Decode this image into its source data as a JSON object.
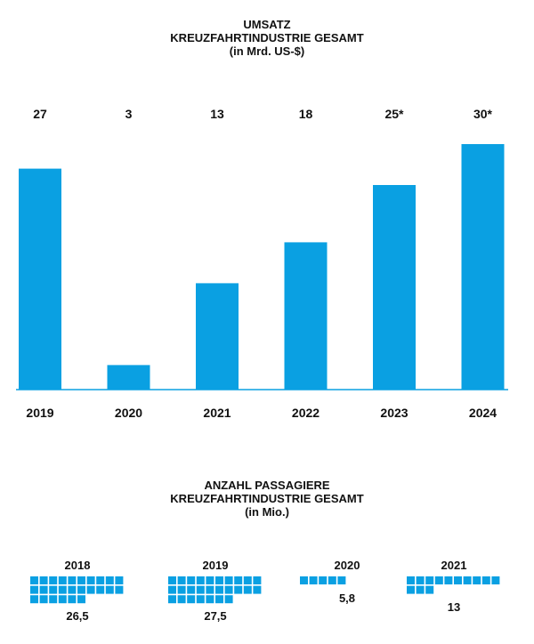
{
  "revenue": {
    "title_line1": "UMSATZ",
    "title_line2": "KREUZFAHRTINDUSTRIE GESAMT",
    "title_line3": "(in Mrd. US-$)"
  },
  "passengers": {
    "title_line1": "ANZAHL PASSAGIERE",
    "title_line2": "KREUZFAHRTINDUSTRIE GESAMT",
    "title_line3": "(in Mio.)"
  },
  "colors": {
    "bar": "#0aa0e2",
    "axis": "#0aa0e2",
    "text": "#111111"
  },
  "chart_data": [
    {
      "type": "bar",
      "title": "UMSATZ KREUZFAHRTINDUSTRIE GESAMT (in Mrd. US-$)",
      "categories": [
        "2019",
        "2020",
        "2021",
        "2022",
        "2023",
        "2024"
      ],
      "values": [
        27,
        3,
        13,
        18,
        25,
        30
      ],
      "value_labels": [
        "27",
        "3",
        "13",
        "18",
        "25*",
        "30*"
      ],
      "ylim": [
        0,
        30
      ],
      "grid": false
    },
    {
      "type": "bar",
      "title": "ANZAHL PASSAGIERE KREUZFAHRTINDUSTRIE GESAMT (in Mio.)",
      "categories": [
        "2018",
        "2019",
        "2020",
        "2021"
      ],
      "values": [
        26.5,
        27.5,
        5.8,
        13
      ],
      "value_labels": [
        "26,5",
        "27,5",
        "5,8",
        "13"
      ],
      "grid": false
    }
  ]
}
